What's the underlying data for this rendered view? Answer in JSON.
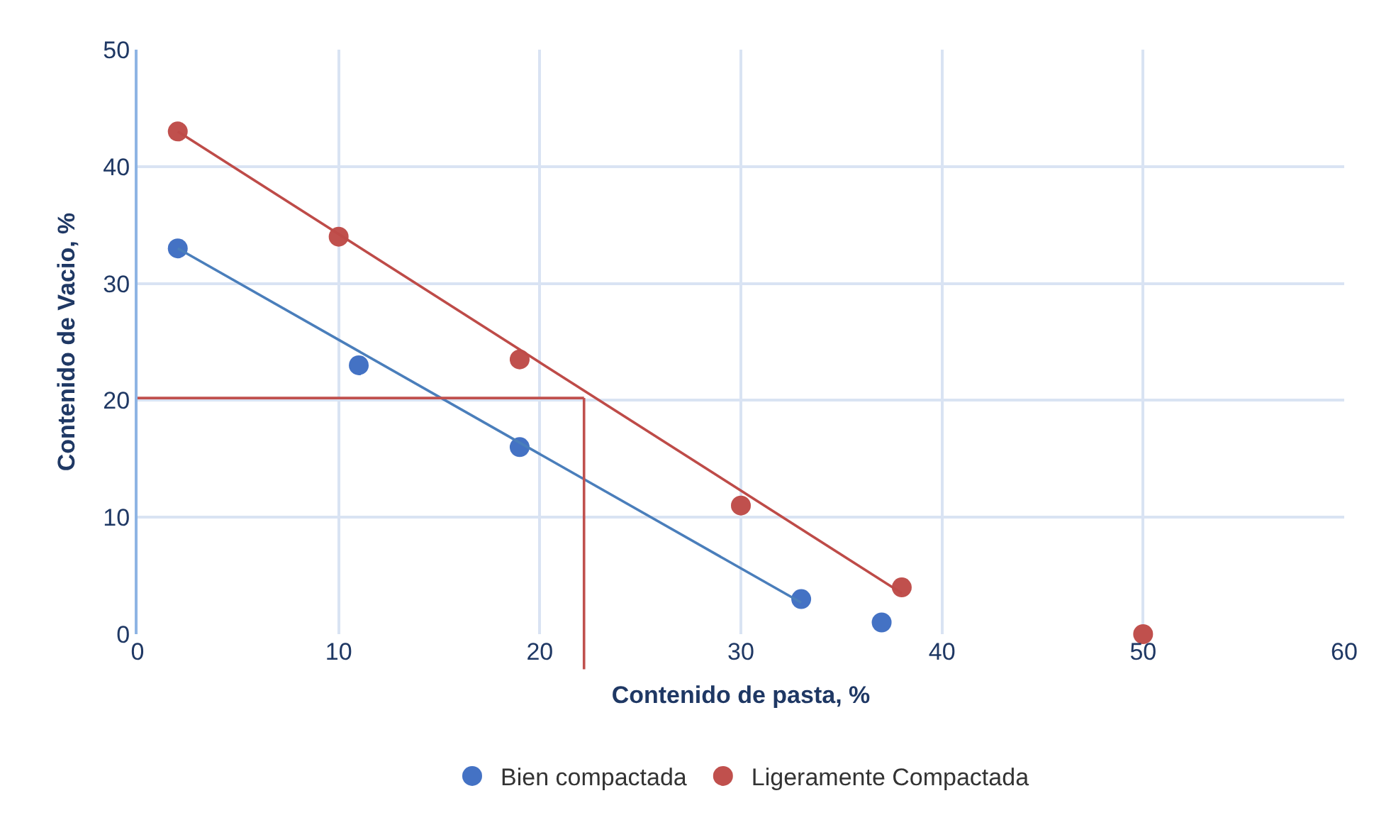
{
  "chart_data": {
    "type": "scatter",
    "xlabel": "Contenido de pasta, %",
    "ylabel": "Contenido de Vacio, %",
    "xlim": [
      0,
      60
    ],
    "xticks": [
      0,
      10,
      20,
      30,
      40,
      50,
      60
    ],
    "ylim": [
      0,
      50
    ],
    "yticks": [
      0,
      10,
      20,
      30,
      40,
      50
    ],
    "grid": true,
    "legend": "bottom",
    "marker": "circle",
    "series": [
      {
        "name": "Bien compactada",
        "color": "#4472c4",
        "x": [
          2,
          11,
          19,
          33,
          37
        ],
        "values": [
          33,
          23,
          16,
          3,
          1
        ]
      },
      {
        "name": "Ligeramente Compactada",
        "color": "#c0504d",
        "x": [
          2,
          10,
          19,
          30,
          38,
          50
        ],
        "values": [
          43,
          34,
          23.5,
          11,
          4,
          0
        ]
      },
      {
        "type": "line",
        "marker": "none",
        "color": "#4a7ebb",
        "x": [
          2,
          33
        ],
        "values": [
          33,
          2.7
        ]
      },
      {
        "type": "line",
        "marker": "none",
        "color": "#be4b48",
        "x": [
          2,
          38
        ],
        "values": [
          43,
          3.5
        ]
      }
    ],
    "ref_lines": [
      {
        "axis": "y",
        "value": 20.2,
        "color": "#c0504d"
      },
      {
        "axis": "x",
        "value": 22.2,
        "color": "#c0504d"
      }
    ]
  }
}
